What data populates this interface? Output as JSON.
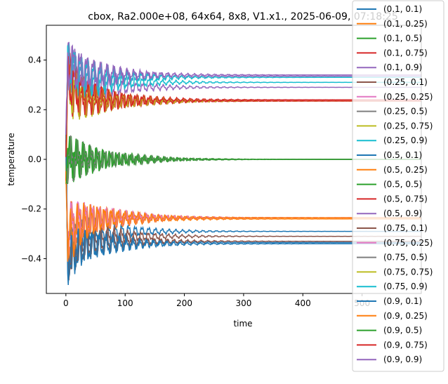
{
  "chart_data": {
    "type": "line",
    "title": "cbox, Ra2.000e+08, 64x64, 8x8, V1.x1., 2025-06-09, 07:18:25",
    "xlabel": "time",
    "ylabel": "temperature",
    "xlim": [
      -33,
      600
    ],
    "ylim": [
      -0.54,
      0.54
    ],
    "xticks": [
      0,
      100,
      200,
      300,
      400,
      500
    ],
    "yticks": [
      -0.4,
      -0.2,
      0.0,
      0.2,
      0.4
    ],
    "xtick_labels": [
      "0",
      "100",
      "200",
      "300",
      "400",
      "500"
    ],
    "ytick_labels": [
      "−0.4",
      "−0.2",
      "0.0",
      "0.2",
      "0.4"
    ],
    "t_end": 600,
    "grid": false,
    "legend_position": "right",
    "series": [
      {
        "name": "(0.1, 0.1)",
        "color": "#1f77b4",
        "start": -0.4,
        "final": -0.29
      },
      {
        "name": "(0.1, 0.25)",
        "color": "#ff7f0e",
        "start": -0.35,
        "final": -0.235
      },
      {
        "name": "(0.1, 0.5)",
        "color": "#2ca02c",
        "start": 0.0,
        "final": 0.0
      },
      {
        "name": "(0.1, 0.75)",
        "color": "#d62728",
        "start": 0.35,
        "final": 0.235
      },
      {
        "name": "(0.1, 0.9)",
        "color": "#9467bd",
        "start": 0.4,
        "final": 0.29
      },
      {
        "name": "(0.25, 0.1)",
        "color": "#8c564b",
        "start": -0.4,
        "final": -0.31
      },
      {
        "name": "(0.25, 0.25)",
        "color": "#e377c2",
        "start": -0.3,
        "final": -0.235
      },
      {
        "name": "(0.25, 0.5)",
        "color": "#7f7f7f",
        "start": 0.0,
        "final": 0.0
      },
      {
        "name": "(0.25, 0.75)",
        "color": "#bcbd22",
        "start": 0.3,
        "final": 0.235
      },
      {
        "name": "(0.25, 0.9)",
        "color": "#17becf",
        "start": 0.4,
        "final": 0.31
      },
      {
        "name": "(0.5, 0.1)",
        "color": "#1f77b4",
        "start": -0.4,
        "final": -0.335
      },
      {
        "name": "(0.5, 0.25)",
        "color": "#ff7f0e",
        "start": -0.3,
        "final": -0.24
      },
      {
        "name": "(0.5, 0.5)",
        "color": "#2ca02c",
        "start": 0.0,
        "final": 0.0
      },
      {
        "name": "(0.5, 0.75)",
        "color": "#d62728",
        "start": 0.3,
        "final": 0.24
      },
      {
        "name": "(0.5, 0.9)",
        "color": "#9467bd",
        "start": 0.4,
        "final": 0.335
      },
      {
        "name": "(0.75, 0.1)",
        "color": "#8c564b",
        "start": -0.4,
        "final": -0.33
      },
      {
        "name": "(0.75, 0.25)",
        "color": "#e377c2",
        "start": -0.3,
        "final": -0.235
      },
      {
        "name": "(0.75, 0.5)",
        "color": "#7f7f7f",
        "start": 0.0,
        "final": 0.0
      },
      {
        "name": "(0.75, 0.75)",
        "color": "#bcbd22",
        "start": 0.3,
        "final": 0.235
      },
      {
        "name": "(0.75, 0.9)",
        "color": "#17becf",
        "start": 0.4,
        "final": 0.33
      },
      {
        "name": "(0.9, 0.1)",
        "color": "#1f77b4",
        "start": -0.4,
        "final": -0.34
      },
      {
        "name": "(0.9, 0.25)",
        "color": "#ff7f0e",
        "start": -0.35,
        "final": -0.235
      },
      {
        "name": "(0.9, 0.5)",
        "color": "#2ca02c",
        "start": 0.0,
        "final": 0.0
      },
      {
        "name": "(0.9, 0.75)",
        "color": "#d62728",
        "start": 0.35,
        "final": 0.235
      },
      {
        "name": "(0.9, 0.9)",
        "color": "#9467bd",
        "start": 0.4,
        "final": 0.34
      }
    ]
  }
}
